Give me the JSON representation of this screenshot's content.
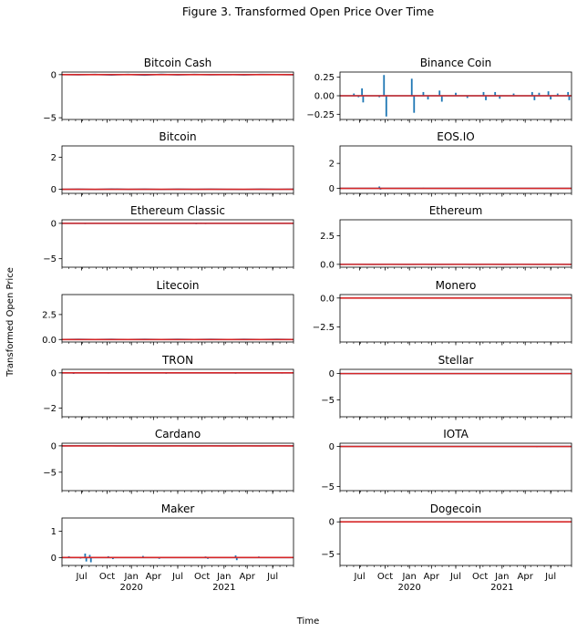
{
  "figure": {
    "title": "Figure 3. Transformed Open Price Over Time",
    "xlabel": "Time",
    "ylabel": "Transformed Open Price"
  },
  "colors": {
    "series": "#1f77b4",
    "zero_line": "#d62728"
  },
  "chart_data": [
    {
      "type": "line",
      "title": "Bitcoin Cash",
      "ylim": [
        -5.2,
        0.3
      ],
      "yticks": [
        0,
        -5
      ],
      "ytick_labels": [
        "0",
        "−5"
      ],
      "series": [
        {
          "values": [
            0,
            -0.02,
            0.03,
            -0.04,
            0.02,
            -0.06,
            0.04,
            -0.03,
            0.02,
            -0.02,
            0.01,
            -0.03,
            0.02,
            0.01,
            -0.02
          ]
        }
      ],
      "xticks": true
    },
    {
      "type": "line",
      "title": "Binance Coin",
      "ylim": [
        -0.32,
        0.32
      ],
      "yticks": [
        0.25,
        0,
        -0.25
      ],
      "ytick_labels": [
        "0.25",
        "0.00",
        "−0.25"
      ],
      "series": [
        {
          "spikes": [
            [
              0.06,
              0.03
            ],
            [
              0.08,
              -0.02
            ],
            [
              0.095,
              0.1
            ],
            [
              0.1,
              -0.09
            ],
            [
              0.17,
              -0.02
            ],
            [
              0.19,
              0.28
            ],
            [
              0.2,
              -0.28
            ],
            [
              0.31,
              0.23
            ],
            [
              0.32,
              -0.23
            ],
            [
              0.36,
              0.05
            ],
            [
              0.38,
              -0.05
            ],
            [
              0.43,
              0.07
            ],
            [
              0.44,
              -0.08
            ],
            [
              0.5,
              0.04
            ],
            [
              0.55,
              -0.03
            ],
            [
              0.62,
              0.05
            ],
            [
              0.63,
              -0.06
            ],
            [
              0.67,
              0.05
            ],
            [
              0.69,
              -0.04
            ],
            [
              0.75,
              0.03
            ],
            [
              0.83,
              0.05
            ],
            [
              0.84,
              -0.06
            ],
            [
              0.86,
              0.04
            ],
            [
              0.9,
              0.06
            ],
            [
              0.91,
              -0.05
            ],
            [
              0.94,
              0.03
            ],
            [
              0.985,
              0.05
            ],
            [
              0.99,
              -0.06
            ]
          ]
        }
      ],
      "xticks": true
    },
    {
      "type": "line",
      "title": "Bitcoin",
      "ylim": [
        -0.25,
        2.7
      ],
      "yticks": [
        2,
        0
      ],
      "ytick_labels": [
        "2",
        "0"
      ],
      "series": [
        {
          "values": [
            0,
            0.01,
            -0.01,
            0.02,
            0,
            0.01,
            -0.01,
            0.01,
            0,
            0.01,
            0,
            -0.01,
            0.01,
            0,
            0.01
          ]
        }
      ],
      "xticks": true
    },
    {
      "type": "line",
      "title": "EOS.IO",
      "ylim": [
        -0.4,
        3.4
      ],
      "yticks": [
        2,
        0
      ],
      "ytick_labels": [
        "2",
        "0"
      ],
      "series": [
        {
          "spikes": [
            [
              0.17,
              0.15
            ],
            [
              0.175,
              -0.1
            ],
            [
              0.36,
              0.05
            ],
            [
              0.5,
              -0.03
            ],
            [
              0.74,
              0.03
            ]
          ]
        }
      ],
      "xticks": true
    },
    {
      "type": "line",
      "title": "Ethereum Classic",
      "ylim": [
        -6.2,
        0.5
      ],
      "yticks": [
        0,
        -5
      ],
      "ytick_labels": [
        "0",
        "−5"
      ],
      "series": [
        {
          "spikes": [
            [
              0.1,
              0.08
            ],
            [
              0.1,
              -0.1
            ],
            [
              0.57,
              0.1
            ],
            [
              0.58,
              -0.12
            ],
            [
              0.6,
              0.1
            ],
            [
              0.62,
              -0.1
            ],
            [
              0.7,
              0.05
            ]
          ]
        }
      ],
      "xticks": true
    },
    {
      "type": "line",
      "title": "Ethereum",
      "ylim": [
        -0.25,
        3.9
      ],
      "yticks": [
        2.5,
        0
      ],
      "ytick_labels": [
        "2.5",
        "0.0"
      ],
      "series": [
        {
          "values": [
            0,
            0.01,
            0,
            0.01,
            0,
            0.01,
            0,
            0.01,
            0,
            0.01,
            0,
            0.01,
            0,
            0.01,
            0
          ]
        }
      ],
      "xticks": true
    },
    {
      "type": "line",
      "title": "Litecoin",
      "ylim": [
        -0.25,
        4.5
      ],
      "yticks": [
        2.5,
        0
      ],
      "ytick_labels": [
        "2.5",
        "0.0"
      ],
      "series": [
        {
          "values": [
            0,
            0.02,
            0,
            0.02,
            0,
            0.02,
            0,
            0.02,
            0,
            0.02,
            0,
            0.02,
            0,
            0.02,
            0
          ]
        }
      ],
      "xticks": true
    },
    {
      "type": "line",
      "title": "Monero",
      "ylim": [
        -3.8,
        0.3
      ],
      "yticks": [
        0,
        -2.5
      ],
      "ytick_labels": [
        "0.0",
        "−2.5"
      ],
      "series": [
        {
          "spikes": [
            [
              0.02,
              0.06
            ],
            [
              0.03,
              -0.04
            ],
            [
              0.85,
              0.03
            ]
          ]
        }
      ],
      "xticks": true
    },
    {
      "type": "line",
      "title": "TRON",
      "ylim": [
        -2.5,
        0.2
      ],
      "yticks": [
        0,
        -2
      ],
      "ytick_labels": [
        "0",
        "−2"
      ],
      "series": [
        {
          "spikes": [
            [
              0.05,
              -0.06
            ],
            [
              0.2,
              -0.04
            ],
            [
              0.22,
              0.03
            ],
            [
              0.45,
              -0.05
            ],
            [
              0.55,
              0.03
            ],
            [
              0.75,
              -0.05
            ],
            [
              0.8,
              0.03
            ],
            [
              0.95,
              -0.04
            ]
          ]
        }
      ],
      "xticks": true
    },
    {
      "type": "line",
      "title": "Stellar",
      "ylim": [
        -8.2,
        0.8
      ],
      "yticks": [
        0,
        -5
      ],
      "ytick_labels": [
        "0",
        "−5"
      ],
      "series": [
        {
          "values": [
            0,
            0.01,
            0,
            0.01,
            0,
            0.01,
            0,
            0.01,
            0,
            0.01,
            0,
            0.01,
            0,
            0.01,
            0
          ]
        }
      ],
      "xticks": true
    },
    {
      "type": "line",
      "title": "Cardano",
      "ylim": [
        -8.5,
        0.5
      ],
      "yticks": [
        0,
        -5
      ],
      "ytick_labels": [
        "0",
        "−5"
      ],
      "series": [
        {
          "values": [
            0,
            0.01,
            0,
            0.01,
            0,
            0.01,
            0,
            0.01,
            0,
            0.01,
            0,
            0.01,
            0,
            0.01,
            0
          ]
        }
      ],
      "xticks": true
    },
    {
      "type": "line",
      "title": "IOTA",
      "ylim": [
        -5.5,
        0.4
      ],
      "yticks": [
        0,
        -5
      ],
      "ytick_labels": [
        "0",
        "−5"
      ],
      "series": [
        {
          "spikes": [
            [
              0.36,
              0.05
            ],
            [
              0.84,
              0.06
            ],
            [
              0.85,
              -0.1
            ],
            [
              0.9,
              0.05
            ],
            [
              0.91,
              -0.08
            ]
          ]
        }
      ],
      "xticks": true
    },
    {
      "type": "line",
      "title": "Maker",
      "ylim": [
        -0.3,
        1.5
      ],
      "yticks": [
        1,
        0
      ],
      "ytick_labels": [
        "1",
        "0"
      ],
      "series": [
        {
          "spikes": [
            [
              0.03,
              0.05
            ],
            [
              0.08,
              -0.04
            ],
            [
              0.1,
              0.15
            ],
            [
              0.105,
              -0.15
            ],
            [
              0.12,
              0.1
            ],
            [
              0.125,
              -0.18
            ],
            [
              0.2,
              0.05
            ],
            [
              0.22,
              -0.06
            ],
            [
              0.35,
              0.06
            ],
            [
              0.42,
              -0.05
            ],
            [
              0.62,
              0.04
            ],
            [
              0.63,
              -0.05
            ],
            [
              0.75,
              0.08
            ],
            [
              0.755,
              -0.1
            ],
            [
              0.85,
              0.04
            ]
          ]
        }
      ],
      "xticks": true,
      "xtick_labels": true
    },
    {
      "type": "line",
      "title": "Dogecoin",
      "ylim": [
        -6.8,
        0.6
      ],
      "yticks": [
        0,
        -5
      ],
      "ytick_labels": [
        "0",
        "−5"
      ],
      "series": [
        {
          "spikes": [
            [
              0.3,
              0.03
            ],
            [
              0.73,
              0.08
            ],
            [
              0.75,
              -0.06
            ],
            [
              0.82,
              0.06
            ],
            [
              0.85,
              -0.05
            ]
          ]
        }
      ],
      "xticks": true,
      "xtick_labels": true
    }
  ],
  "x_axis": {
    "month_ticks": [
      "Jul",
      "Oct",
      "Jan",
      "Apr",
      "Jul",
      "Oct",
      "Jan",
      "Apr",
      "Jul"
    ],
    "year_labels": [
      "2020",
      "2021"
    ]
  }
}
